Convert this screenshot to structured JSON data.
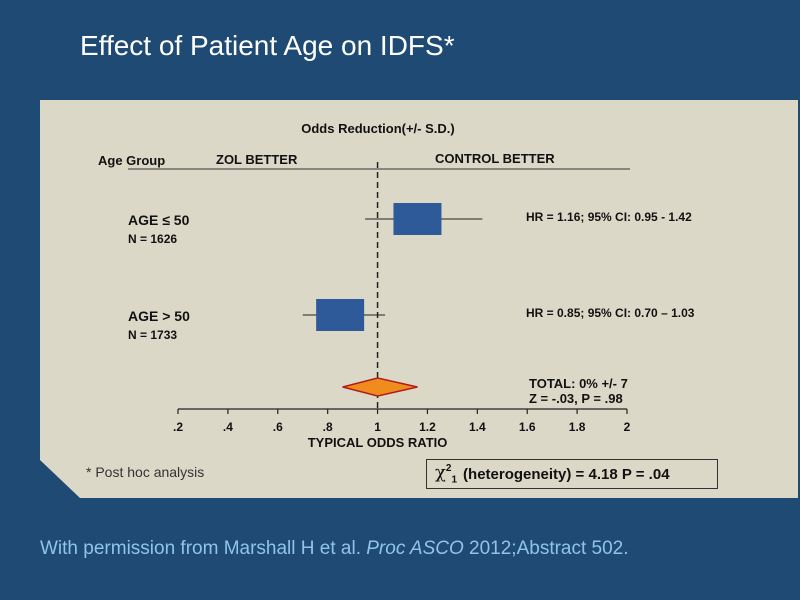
{
  "slide": {
    "title": "Effect of Patient Age on IDFS*",
    "footnote": "* Post hoc analysis",
    "citation_prefix": "With permission from Marshall H et al. ",
    "citation_journal": "Proc ASCO",
    "citation_suffix": " 2012;Abstract 502."
  },
  "stat_box": {
    "chi_symbol": "χ",
    "chi_sup": "2",
    "chi_sub": "1",
    "text": "(heterogeneity) = 4.18   P = .04"
  },
  "colors": {
    "panel_bg": "#dcd8c8",
    "box_fill": "#2e5a9a",
    "diamond_fill": "#f08c1e",
    "diamond_stroke": "#b01c1c"
  },
  "chart_data": {
    "type": "forest",
    "title": "Odds Reduction(+/- S.D.)",
    "header": {
      "group_label": "Age Group",
      "left_label": "ZOL  BETTER",
      "right_label": "CONTROL BETTER"
    },
    "xlabel": "TYPICAL ODDS RATIO",
    "xlim": [
      0.2,
      2.0
    ],
    "ticks": [
      0.2,
      0.4,
      0.6,
      0.8,
      1.0,
      1.2,
      1.4,
      1.6,
      1.8,
      2.0
    ],
    "tick_labels": [
      ".2",
      ".4",
      ".6",
      ".8",
      "1",
      "1.2",
      "1.4",
      "1.6",
      "1.8",
      "2"
    ],
    "reference_line": 1.0,
    "rows": [
      {
        "label": "AGE ≤ 50",
        "n": "N = 1626",
        "hr": 1.16,
        "ci_low": 0.95,
        "ci_high": 1.42,
        "text": "HR = 1.16; 95% CI: 0.95 - 1.42"
      },
      {
        "label": "AGE > 50",
        "n": "N = 1733",
        "hr": 0.85,
        "ci_low": 0.7,
        "ci_high": 1.03,
        "text": "HR = 0.85; 95% CI: 0.70 – 1.03"
      }
    ],
    "total": {
      "center": 1.0,
      "low": 0.86,
      "high": 1.16,
      "line1": "TOTAL: 0% +/- 7",
      "line2": "Z = -.03,  P = .98"
    }
  }
}
